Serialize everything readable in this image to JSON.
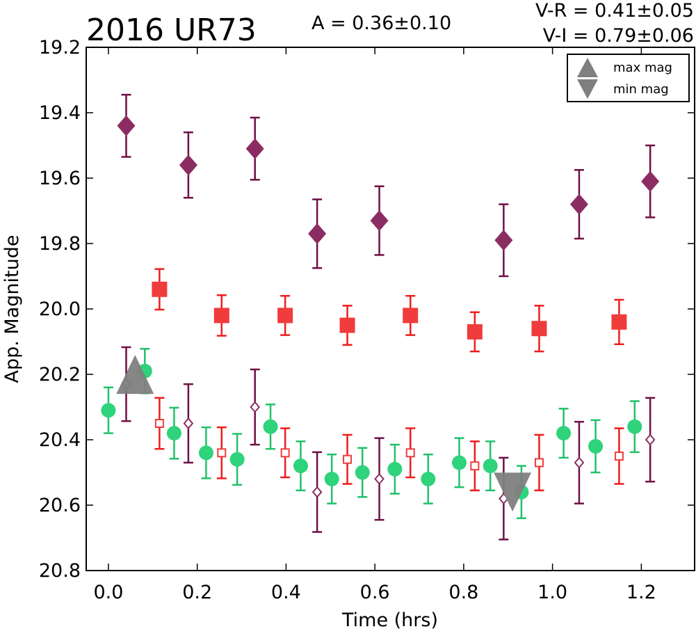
{
  "chart_data": {
    "type": "scatter",
    "title": "2016 UR73",
    "amplitude_text": "A  = 0.36±0.10",
    "color_text_1": "V-R = 0.41±0.05",
    "color_text_2": "V-I  = 0.79±0.06",
    "xlabel": "Time (hrs)",
    "ylabel": "App. Magnitude",
    "xlim": [
      -0.05,
      1.32
    ],
    "ylim": [
      20.8,
      19.2
    ],
    "y_inverted": true,
    "x_ticks": [
      "0.0",
      "0.2",
      "0.4",
      "0.6",
      "0.8",
      "1.0",
      "1.2"
    ],
    "y_ticks": [
      "19.2",
      "19.4",
      "19.6",
      "19.8",
      "20.0",
      "20.2",
      "20.4",
      "20.6",
      "20.8"
    ],
    "legend": {
      "placement": "top-right",
      "entries": [
        {
          "label": "max mag",
          "marker": "triangle-up",
          "color": "#7f7f7f"
        },
        {
          "label": "min mag",
          "marker": "triangle-down",
          "color": "#7f7f7f"
        }
      ]
    },
    "series": [
      {
        "marker": "diamond-filled",
        "color": "#8b2d62",
        "errcolor": "#6e0f44",
        "points": [
          {
            "x": 0.04,
            "y": 19.44,
            "err": 0.095
          },
          {
            "x": 0.18,
            "y": 19.56,
            "err": 0.1
          },
          {
            "x": 0.33,
            "y": 19.51,
            "err": 0.095
          },
          {
            "x": 0.47,
            "y": 19.77,
            "err": 0.105
          },
          {
            "x": 0.61,
            "y": 19.73,
            "err": 0.105
          },
          {
            "x": 0.89,
            "y": 19.79,
            "err": 0.11
          },
          {
            "x": 1.06,
            "y": 19.68,
            "err": 0.105
          },
          {
            "x": 1.22,
            "y": 19.61,
            "err": 0.11
          }
        ]
      },
      {
        "marker": "square-filled",
        "color": "#f03c3c",
        "errcolor": "#ee1c1c",
        "points": [
          {
            "x": 0.115,
            "y": 19.94,
            "err": 0.062
          },
          {
            "x": 0.255,
            "y": 20.02,
            "err": 0.062
          },
          {
            "x": 0.398,
            "y": 20.02,
            "err": 0.06
          },
          {
            "x": 0.538,
            "y": 20.05,
            "err": 0.06
          },
          {
            "x": 0.68,
            "y": 20.02,
            "err": 0.06
          },
          {
            "x": 0.825,
            "y": 20.07,
            "err": 0.06
          },
          {
            "x": 0.97,
            "y": 20.06,
            "err": 0.07
          },
          {
            "x": 1.15,
            "y": 20.04,
            "err": 0.068
          }
        ]
      },
      {
        "marker": "circle-filled",
        "color": "#2ed37c",
        "errcolor": "#22c06a",
        "points": [
          {
            "x": 0.0,
            "y": 20.31,
            "err": 0.07
          },
          {
            "x": 0.082,
            "y": 20.19,
            "err": 0.068
          },
          {
            "x": 0.148,
            "y": 20.38,
            "err": 0.078
          },
          {
            "x": 0.22,
            "y": 20.44,
            "err": 0.078
          },
          {
            "x": 0.29,
            "y": 20.46,
            "err": 0.078
          },
          {
            "x": 0.365,
            "y": 20.36,
            "err": 0.068
          },
          {
            "x": 0.433,
            "y": 20.48,
            "err": 0.075
          },
          {
            "x": 0.503,
            "y": 20.52,
            "err": 0.075
          },
          {
            "x": 0.572,
            "y": 20.5,
            "err": 0.075
          },
          {
            "x": 0.645,
            "y": 20.49,
            "err": 0.075
          },
          {
            "x": 0.72,
            "y": 20.52,
            "err": 0.075
          },
          {
            "x": 0.79,
            "y": 20.47,
            "err": 0.075
          },
          {
            "x": 0.86,
            "y": 20.48,
            "err": 0.075
          },
          {
            "x": 0.93,
            "y": 20.56,
            "err": 0.08
          },
          {
            "x": 1.025,
            "y": 20.38,
            "err": 0.075
          },
          {
            "x": 1.097,
            "y": 20.42,
            "err": 0.08
          },
          {
            "x": 1.185,
            "y": 20.36,
            "err": 0.078
          }
        ]
      },
      {
        "marker": "square-open",
        "color": "#f03c3c",
        "errcolor": "#ee1c1c",
        "points": [
          {
            "x": 0.115,
            "y": 20.35,
            "err": 0.078
          },
          {
            "x": 0.255,
            "y": 20.44,
            "err": 0.078
          },
          {
            "x": 0.398,
            "y": 20.44,
            "err": 0.075
          },
          {
            "x": 0.538,
            "y": 20.46,
            "err": 0.075
          },
          {
            "x": 0.68,
            "y": 20.44,
            "err": 0.075
          },
          {
            "x": 0.825,
            "y": 20.48,
            "err": 0.075
          },
          {
            "x": 0.97,
            "y": 20.47,
            "err": 0.085
          },
          {
            "x": 1.15,
            "y": 20.45,
            "err": 0.085
          }
        ]
      },
      {
        "marker": "diamond-open",
        "color": "#8b2d62",
        "errcolor": "#6e0f44",
        "points": [
          {
            "x": 0.04,
            "y": 20.23,
            "err": 0.113
          },
          {
            "x": 0.18,
            "y": 20.35,
            "err": 0.12
          },
          {
            "x": 0.33,
            "y": 20.3,
            "err": 0.115
          },
          {
            "x": 0.47,
            "y": 20.56,
            "err": 0.122
          },
          {
            "x": 0.61,
            "y": 20.52,
            "err": 0.125
          },
          {
            "x": 0.89,
            "y": 20.58,
            "err": 0.125
          },
          {
            "x": 1.06,
            "y": 20.47,
            "err": 0.125
          },
          {
            "x": 1.22,
            "y": 20.4,
            "err": 0.128
          }
        ]
      }
    ],
    "markers": [
      {
        "kind": "max",
        "shape": "triangle-up",
        "x": 0.06,
        "y": 20.23,
        "color": "#7f7f7f"
      },
      {
        "kind": "min",
        "shape": "triangle-down",
        "x": 0.91,
        "y": 20.56,
        "color": "#7f7f7f"
      }
    ]
  }
}
